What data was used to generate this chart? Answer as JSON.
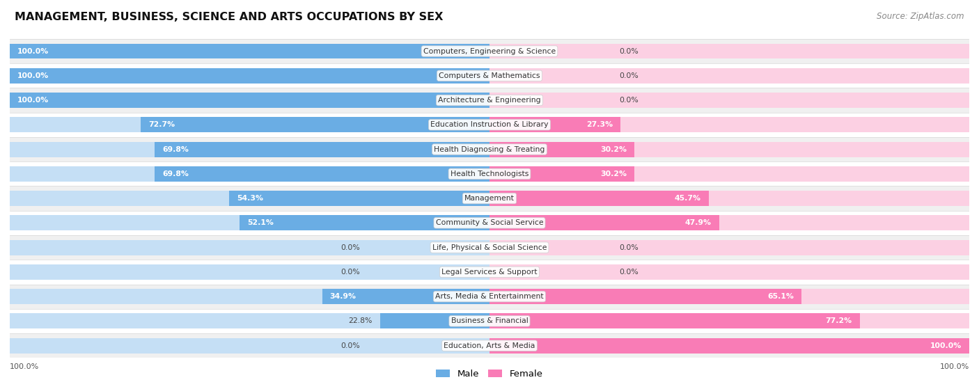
{
  "title": "MANAGEMENT, BUSINESS, SCIENCE AND ARTS OCCUPATIONS BY SEX",
  "source": "Source: ZipAtlas.com",
  "categories": [
    "Computers, Engineering & Science",
    "Computers & Mathematics",
    "Architecture & Engineering",
    "Education Instruction & Library",
    "Health Diagnosing & Treating",
    "Health Technologists",
    "Management",
    "Community & Social Service",
    "Life, Physical & Social Science",
    "Legal Services & Support",
    "Arts, Media & Entertainment",
    "Business & Financial",
    "Education, Arts & Media"
  ],
  "male_pct": [
    100.0,
    100.0,
    100.0,
    72.7,
    69.8,
    69.8,
    54.3,
    52.1,
    0.0,
    0.0,
    34.9,
    22.8,
    0.0
  ],
  "female_pct": [
    0.0,
    0.0,
    0.0,
    27.3,
    30.2,
    30.2,
    45.7,
    47.9,
    0.0,
    0.0,
    65.1,
    77.2,
    100.0
  ],
  "male_color": "#6aade4",
  "female_color": "#f97cb6",
  "male_color_light": "#c5dff5",
  "female_color_light": "#fcd0e3",
  "bar_height": 0.62,
  "legend_male": "Male",
  "legend_female": "Female",
  "row_colors": [
    "#f0f0f0",
    "#ffffff"
  ]
}
